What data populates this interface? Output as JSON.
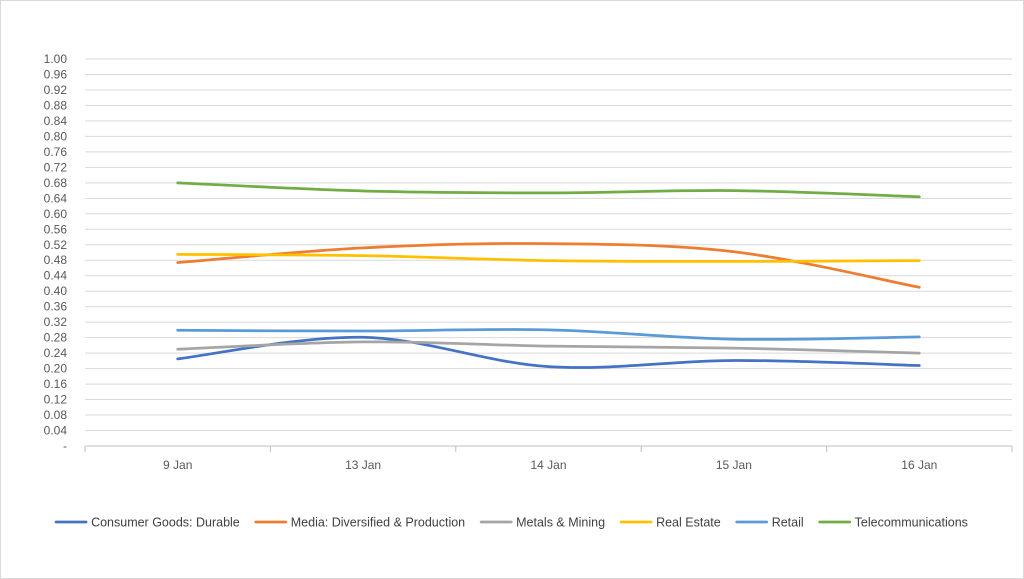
{
  "chart_data": {
    "type": "line",
    "smooth": true,
    "categories": [
      "9 Jan",
      "13 Jan",
      "14 Jan",
      "15 Jan",
      "16 Jan"
    ],
    "ylim": [
      0,
      1.0
    ],
    "yticks": [
      0,
      0.04,
      0.08,
      0.12,
      0.16,
      0.2,
      0.24,
      0.28,
      0.32,
      0.36,
      0.4,
      0.44,
      0.48,
      0.52,
      0.56,
      0.6,
      0.64,
      0.68,
      0.72,
      0.76,
      0.8,
      0.84,
      0.88,
      0.92,
      0.96,
      1.0
    ],
    "ytick_labels": [
      "-",
      "0.04",
      "0.08",
      "0.12",
      "0.16",
      "0.20",
      "0.24",
      "0.28",
      "0.32",
      "0.36",
      "0.40",
      "0.44",
      "0.48",
      "0.52",
      "0.56",
      "0.60",
      "0.64",
      "0.68",
      "0.72",
      "0.76",
      "0.80",
      "0.84",
      "0.88",
      "0.92",
      "0.96",
      "1.00"
    ],
    "grid": true,
    "legend_position": "bottom",
    "series": [
      {
        "name": "Consumer Goods: Durable",
        "color": "#4472C4",
        "values": [
          0.225,
          0.281,
          0.205,
          0.221,
          0.208
        ]
      },
      {
        "name": "Media: Diversified & Production",
        "color": "#ED7D31",
        "values": [
          0.474,
          0.512,
          0.523,
          0.502,
          0.41
        ]
      },
      {
        "name": "Metals & Mining",
        "color": "#A5A5A5",
        "values": [
          0.25,
          0.269,
          0.258,
          0.253,
          0.24
        ]
      },
      {
        "name": "Real Estate",
        "color": "#FFC000",
        "values": [
          0.495,
          0.492,
          0.479,
          0.477,
          0.479
        ]
      },
      {
        "name": "Retail",
        "color": "#5B9BD5",
        "values": [
          0.299,
          0.297,
          0.3,
          0.276,
          0.282
        ]
      },
      {
        "name": "Telecommunications",
        "color": "#70AD47",
        "values": [
          0.68,
          0.659,
          0.654,
          0.66,
          0.644
        ]
      }
    ]
  }
}
